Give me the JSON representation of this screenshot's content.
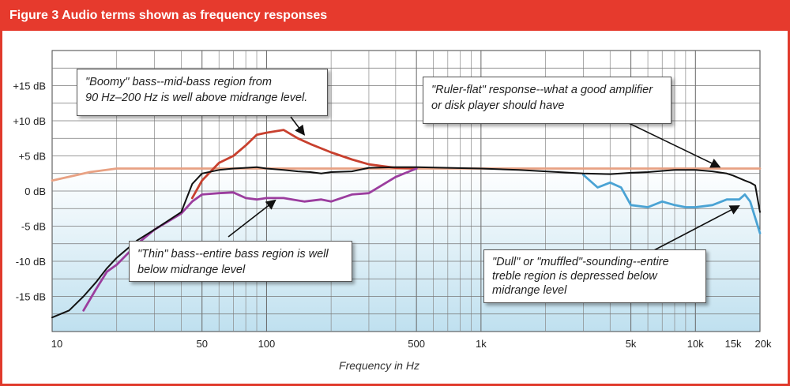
{
  "figure_title": "Figure 3 Audio terms shown as frequency responses",
  "chart_data": {
    "type": "line",
    "title": "Figure 3 Audio terms shown as frequency responses",
    "xlabel": "Frequency in Hz",
    "ylabel": "",
    "x_scale": "log",
    "xlim": [
      10,
      20000
    ],
    "ylim": [
      -20,
      20
    ],
    "grid": true,
    "x_tick_labels": [
      "10",
      "50",
      "100",
      "500",
      "1k",
      "5k",
      "10k",
      "15k",
      "20k"
    ],
    "x_tick_values": [
      10,
      50,
      100,
      500,
      1000,
      5000,
      10000,
      15000,
      20000
    ],
    "y_tick_labels": [
      "+15 dB",
      "+10 dB",
      "+5 dB",
      "0 dB",
      "-5 dB",
      "-10 dB",
      "-15 dB"
    ],
    "y_tick_values": [
      15,
      10,
      5,
      0,
      -5,
      -10,
      -15
    ],
    "colors": {
      "ruler_flat": "#e8a183",
      "boomy": "#c8402e",
      "thin": "#9b3d9e",
      "dull": "#4aa3d4",
      "typical": "#111111",
      "plot_top": "#ffffff",
      "plot_bottom": "#bfe0ef",
      "title_bar": "#e63a2d"
    },
    "series": [
      {
        "key": "ruler_flat",
        "x": [
          10,
          15,
          20,
          50,
          100,
          500,
          1000,
          5000,
          10000,
          20000
        ],
        "y": [
          1.5,
          2.7,
          3.2,
          3.2,
          3.2,
          3.2,
          3.2,
          3.2,
          3.2,
          3.2
        ]
      },
      {
        "key": "boomy",
        "x": [
          45,
          50,
          60,
          70,
          80,
          90,
          100,
          120,
          140,
          160,
          200,
          250,
          300,
          400,
          500
        ],
        "y": [
          -1.0,
          1.5,
          4.0,
          5.0,
          6.5,
          8.0,
          8.3,
          8.7,
          7.5,
          6.7,
          5.5,
          4.5,
          3.8,
          3.3,
          3.2
        ]
      },
      {
        "key": "thin",
        "x": [
          14,
          16,
          18,
          20,
          25,
          30,
          40,
          45,
          50,
          60,
          70,
          80,
          90,
          100,
          120,
          150,
          180,
          200,
          250,
          300,
          400,
          500
        ],
        "y": [
          -17.0,
          -14.0,
          -11.5,
          -10.5,
          -7.5,
          -5.5,
          -3.2,
          -1.5,
          -0.5,
          -0.3,
          -0.2,
          -1.0,
          -1.2,
          -1.0,
          -1.0,
          -1.5,
          -1.2,
          -1.5,
          -0.5,
          -0.3,
          2.0,
          3.2
        ]
      },
      {
        "key": "dull",
        "x": [
          3000,
          3500,
          4000,
          4500,
          5000,
          6000,
          7000,
          8000,
          9000,
          10000,
          12000,
          14000,
          16000,
          17000,
          18000,
          20000
        ],
        "y": [
          2.3,
          0.5,
          1.2,
          0.5,
          -2.0,
          -2.3,
          -1.5,
          -2.0,
          -2.3,
          -2.3,
          -2.0,
          -1.2,
          -1.2,
          -0.5,
          -1.5,
          -6.0
        ]
      },
      {
        "key": "typical",
        "x": [
          10,
          12,
          14,
          16,
          18,
          20,
          25,
          30,
          40,
          45,
          50,
          60,
          70,
          80,
          90,
          100,
          120,
          140,
          160,
          180,
          200,
          250,
          300,
          400,
          500,
          700,
          1000,
          1500,
          2000,
          3000,
          4000,
          5000,
          6000,
          8000,
          10000,
          12000,
          14000,
          15000,
          17000,
          18000,
          19000,
          20000
        ],
        "y": [
          -18.0,
          -17.0,
          -15.0,
          -13.0,
          -11.0,
          -9.5,
          -7.0,
          -5.5,
          -3.0,
          1.0,
          2.5,
          3.0,
          3.2,
          3.3,
          3.4,
          3.2,
          3.0,
          2.8,
          2.7,
          2.5,
          2.7,
          2.8,
          3.3,
          3.4,
          3.4,
          3.3,
          3.2,
          3.0,
          2.8,
          2.5,
          2.4,
          2.6,
          2.7,
          3.0,
          3.0,
          2.8,
          2.5,
          2.2,
          1.5,
          1.2,
          0.8,
          -3.0
        ]
      }
    ],
    "annotations": [
      {
        "key": "boomy",
        "lines": [
          "\"Boomy\" bass--mid-bass region from",
          "90 Hz–200 Hz is well above midrange level."
        ],
        "arrow_to": [
          150,
          8.0
        ]
      },
      {
        "key": "flat",
        "lines": [
          "\"Ruler-flat\" response--what a good amplifier",
          "or disk player should have"
        ],
        "arrow_to": [
          13000,
          3.4
        ]
      },
      {
        "key": "thin",
        "lines": [
          "\"Thin\" bass--entire bass region is well",
          "below midrange level"
        ],
        "arrow_to": [
          110,
          -1.3
        ]
      },
      {
        "key": "dull",
        "lines": [
          "\"Dull\" or \"muffled\"-sounding--entire",
          "treble region is depressed below",
          "midrange level"
        ],
        "arrow_to": [
          16000,
          -2.1
        ]
      }
    ]
  }
}
